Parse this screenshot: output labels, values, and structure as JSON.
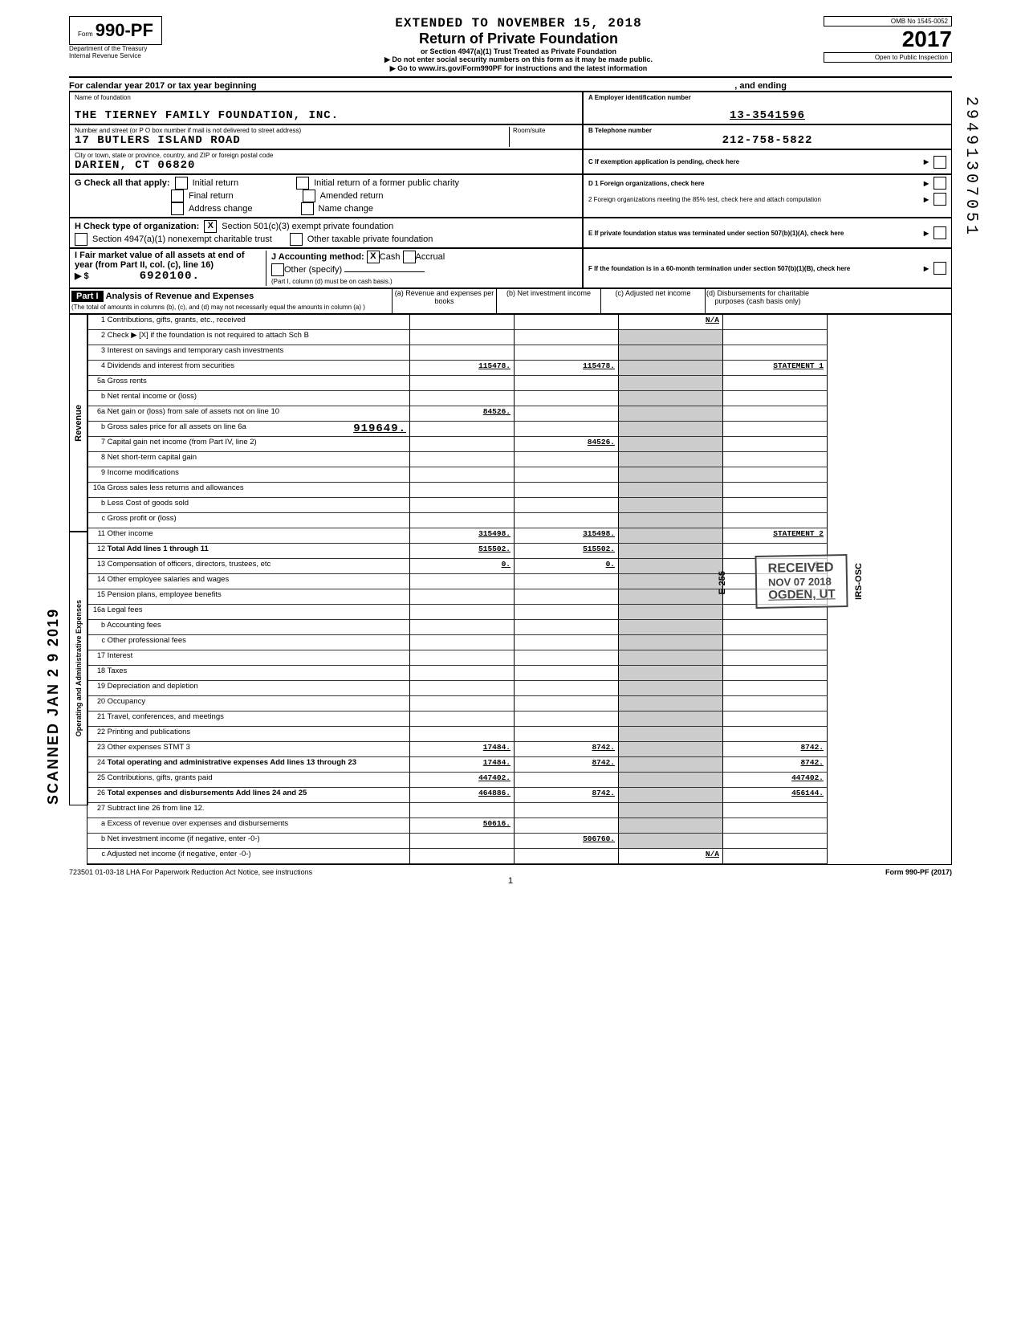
{
  "header": {
    "extended": "EXTENDED TO NOVEMBER 15, 2018",
    "title": "Return of Private Foundation",
    "sub1": "or Section 4947(a)(1) Trust Treated as Private Foundation",
    "sub2": "▶ Do not enter social security numbers on this form as it may be made public.",
    "sub3": "▶ Go to www.irs.gov/Form990PF for instructions and the latest information",
    "form_prefix": "Form",
    "form_num": "990-PF",
    "dept": "Department of the Treasury",
    "irs": "Internal Revenue Service",
    "omb": "OMB No 1545-0052",
    "year": "2017",
    "open": "Open to Public Inspection"
  },
  "calendar": {
    "label": "For calendar year 2017 or tax year beginning",
    "ending": ", and ending"
  },
  "foundation": {
    "name_label": "Name of foundation",
    "name": "THE TIERNEY FAMILY FOUNDATION, INC.",
    "addr_label": "Number and street (or P O box number if mail is not delivered to street address)",
    "room_label": "Room/suite",
    "addr": "17 BUTLERS ISLAND ROAD",
    "city_label": "City or town, state or province, country, and ZIP or foreign postal code",
    "city": "DARIEN, CT   06820"
  },
  "right": {
    "a_label": "A Employer identification number",
    "ein": "13-3541596",
    "b_label": "B Telephone number",
    "phone": "212-758-5822",
    "c_label": "C If exemption application is pending, check here",
    "d1": "D 1 Foreign organizations, check here",
    "d2": "2 Foreign organizations meeting the 85% test, check here and attach computation",
    "e": "E If private foundation status was terminated under section 507(b)(1)(A), check here",
    "f": "F If the foundation is in a 60-month termination under section 507(b)(1)(B), check here"
  },
  "g": {
    "label": "G Check all that apply:",
    "initial": "Initial return",
    "final": "Final return",
    "addr_change": "Address change",
    "initial_former": "Initial return of a former public charity",
    "amended": "Amended return",
    "name_change": "Name change"
  },
  "h": {
    "label": "H Check type of organization:",
    "opt1": "Section 501(c)(3) exempt private foundation",
    "opt2": "Section 4947(a)(1) nonexempt charitable trust",
    "opt3": "Other taxable private foundation"
  },
  "i": {
    "label": "I Fair market value of all assets at end of year (from Part II, col. (c), line 16)",
    "value": "6920100."
  },
  "j": {
    "label": "J Accounting method:",
    "cash": "Cash",
    "accrual": "Accrual",
    "other": "Other (specify)",
    "note": "(Part I, column (d) must be on cash basis.)"
  },
  "part1": {
    "hdr": "Part I",
    "title": "Analysis of Revenue and Expenses",
    "sub": "(The total of amounts in columns (b), (c), and (d) may not necessarily equal the amounts in column (a) )",
    "col_a": "(a) Revenue and expenses per books",
    "col_b": "(b) Net investment income",
    "col_c": "(c) Adjusted net income",
    "col_d": "(d) Disbursements for charitable purposes (cash basis only)"
  },
  "rows": {
    "r1": {
      "n": "1",
      "d": "Contributions, gifts, grants, etc., received",
      "c": "N/A"
    },
    "r2": {
      "n": "2",
      "d": "Check ▶ [X] if the foundation is not required to attach Sch B"
    },
    "r3": {
      "n": "3",
      "d": "Interest on savings and temporary cash investments"
    },
    "r4": {
      "n": "4",
      "d": "Dividends and interest from securities",
      "a": "115478.",
      "b": "115478.",
      "dd": "STATEMENT 1"
    },
    "r5a": {
      "n": "5a",
      "d": "Gross rents"
    },
    "r5b": {
      "n": "b",
      "d": "Net rental income or (loss)"
    },
    "r6a": {
      "n": "6a",
      "d": "Net gain or (loss) from sale of assets not on line 10",
      "a": "84526."
    },
    "r6b": {
      "n": "b",
      "d": "Gross sales price for all assets on line 6a",
      "v": "919649."
    },
    "r7": {
      "n": "7",
      "d": "Capital gain net income (from Part IV, line 2)",
      "b": "84526."
    },
    "r8": {
      "n": "8",
      "d": "Net short-term capital gain"
    },
    "r9": {
      "n": "9",
      "d": "Income modifications"
    },
    "r10a": {
      "n": "10a",
      "d": "Gross sales less returns and allowances"
    },
    "r10b": {
      "n": "b",
      "d": "Less Cost of goods sold"
    },
    "r10c": {
      "n": "c",
      "d": "Gross profit or (loss)"
    },
    "r11": {
      "n": "11",
      "d": "Other income",
      "a": "315498.",
      "b": "315498.",
      "dd": "STATEMENT 2"
    },
    "r12": {
      "n": "12",
      "d": "Total Add lines 1 through 11",
      "a": "515502.",
      "b": "515502."
    },
    "r13": {
      "n": "13",
      "d": "Compensation of officers, directors, trustees, etc",
      "a": "0.",
      "b": "0.",
      "dd": "0."
    },
    "r14": {
      "n": "14",
      "d": "Other employee salaries and wages"
    },
    "r15": {
      "n": "15",
      "d": "Pension plans, employee benefits"
    },
    "r16a": {
      "n": "16a",
      "d": "Legal fees"
    },
    "r16b": {
      "n": "b",
      "d": "Accounting fees"
    },
    "r16c": {
      "n": "c",
      "d": "Other professional fees"
    },
    "r17": {
      "n": "17",
      "d": "Interest"
    },
    "r18": {
      "n": "18",
      "d": "Taxes"
    },
    "r19": {
      "n": "19",
      "d": "Depreciation and depletion"
    },
    "r20": {
      "n": "20",
      "d": "Occupancy"
    },
    "r21": {
      "n": "21",
      "d": "Travel, conferences, and meetings"
    },
    "r22": {
      "n": "22",
      "d": "Printing and publications"
    },
    "r23": {
      "n": "23",
      "d": "Other expenses                STMT 3",
      "a": "17484.",
      "b": "8742.",
      "dd": "8742."
    },
    "r24": {
      "n": "24",
      "d": "Total operating and administrative expenses Add lines 13 through 23",
      "a": "17484.",
      "b": "8742.",
      "dd": "8742."
    },
    "r25": {
      "n": "25",
      "d": "Contributions, gifts, grants paid",
      "a": "447402.",
      "dd": "447402."
    },
    "r26": {
      "n": "26",
      "d": "Total expenses and disbursements Add lines 24 and 25",
      "a": "464886.",
      "b": "8742.",
      "dd": "456144."
    },
    "r27": {
      "n": "27",
      "d": "Subtract line 26 from line 12."
    },
    "r27a": {
      "n": "a",
      "d": "Excess of revenue over expenses and disbursements",
      "a": "50616."
    },
    "r27b": {
      "n": "b",
      "d": "Net investment income (if negative, enter -0-)",
      "b": "506760."
    },
    "r27c": {
      "n": "c",
      "d": "Adjusted net income (if negative, enter -0-)",
      "c": "N/A"
    }
  },
  "revenue_label": "Revenue",
  "expenses_label": "Operating and Administrative Expenses",
  "stamps": {
    "received": "RECEIVED",
    "date": "NOV 07 2018",
    "ogden": "OGDEN, UT",
    "irs_osc": "IRS-OSC",
    "e255": "E-255"
  },
  "side_num": "29491307051",
  "left_scanned": "SCANNED JAN 2 9 2019",
  "footer": {
    "lha": "723501 01-03-18  LHA  For Paperwork Reduction Act Notice, see instructions",
    "page": "1",
    "form": "Form 990-PF (2017)"
  }
}
